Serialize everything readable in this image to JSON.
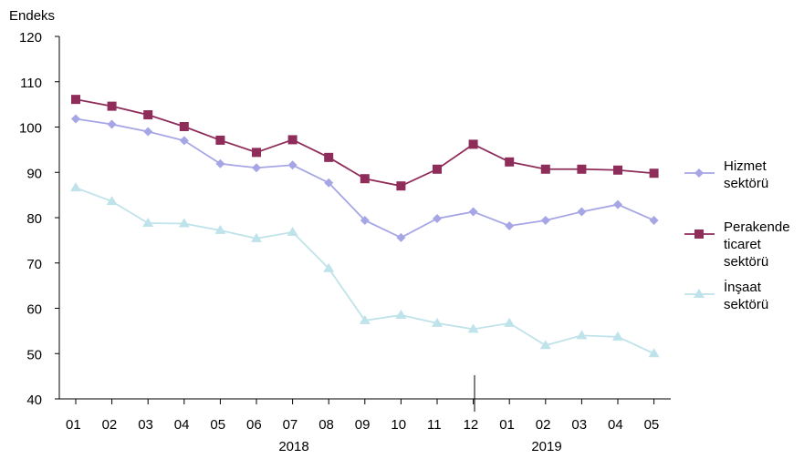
{
  "chart_data": {
    "type": "line",
    "ylabel": "Endeks",
    "ylim": [
      40,
      120
    ],
    "yticks": [
      40,
      50,
      60,
      70,
      80,
      90,
      100,
      110,
      120
    ],
    "categories": [
      "01",
      "02",
      "03",
      "04",
      "05",
      "06",
      "07",
      "08",
      "09",
      "10",
      "11",
      "12",
      "01",
      "02",
      "03",
      "04",
      "05"
    ],
    "year_labels": [
      "2018",
      "2019"
    ],
    "grid": false,
    "legend_position": "right",
    "series": [
      {
        "name_lines": [
          "Hizmet",
          "sektörü"
        ],
        "color": "#a6a6e6",
        "marker": "diamond",
        "values": [
          101.8,
          100.6,
          99.0,
          97.0,
          91.9,
          91.0,
          91.6,
          87.7,
          79.4,
          75.6,
          79.8,
          81.3,
          78.2,
          79.4,
          81.3,
          82.9,
          79.4
        ]
      },
      {
        "name_lines": [
          "Perakende",
          "ticaret",
          "sektörü"
        ],
        "color": "#8e2c5a",
        "marker": "square",
        "values": [
          106.1,
          104.6,
          102.7,
          100.1,
          97.1,
          94.4,
          97.2,
          93.3,
          88.6,
          87.0,
          90.7,
          96.2,
          92.3,
          90.7,
          90.7,
          90.5,
          89.8
        ]
      },
      {
        "name_lines": [
          "İnşaat",
          "sektörü"
        ],
        "color": "#bfe3ea",
        "marker": "triangle",
        "values": [
          86.6,
          83.6,
          78.8,
          78.7,
          77.2,
          75.4,
          76.8,
          68.8,
          57.3,
          58.5,
          56.7,
          55.4,
          56.7,
          51.8,
          54.0,
          53.7,
          50.0
        ]
      }
    ]
  }
}
